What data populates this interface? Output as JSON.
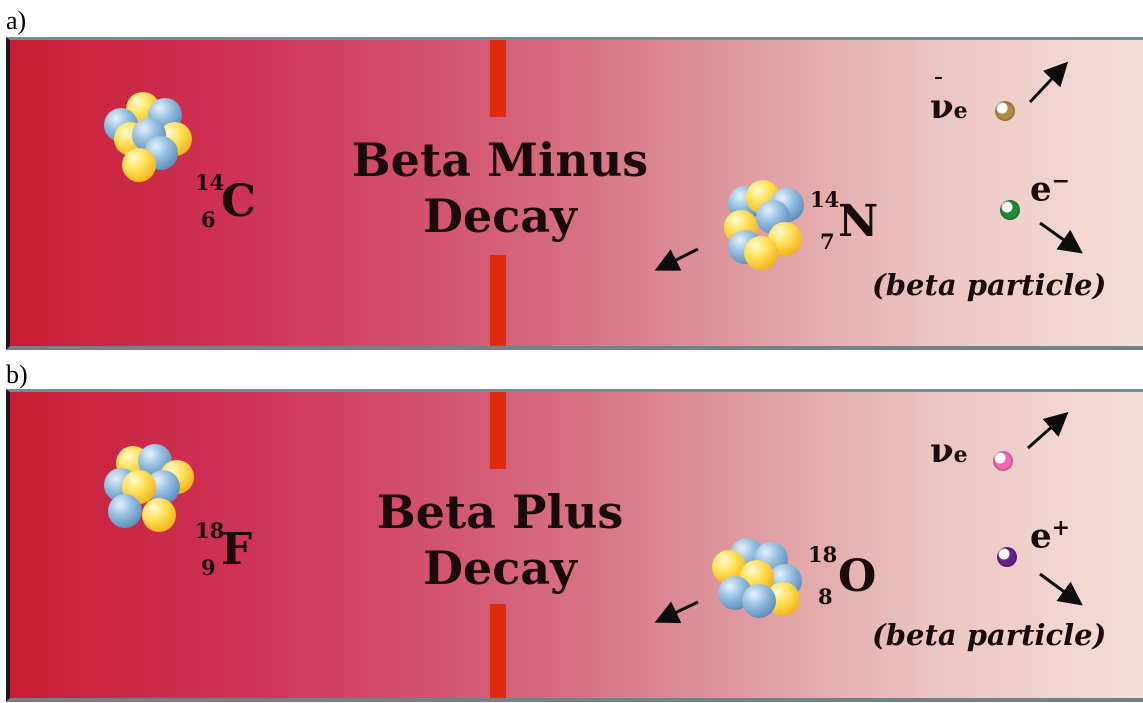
{
  "panels": [
    {
      "label": "a)",
      "title_line1": "Beta Minus",
      "title_line2": "Decay",
      "parent": {
        "mass": "14",
        "atomic": "6",
        "symbol": "C"
      },
      "daughter": {
        "mass": "14",
        "atomic": "7",
        "symbol": "N"
      },
      "neutrino": {
        "symbol": "ν",
        "subscript": "e",
        "antiparticle": true,
        "color": "#b58a49"
      },
      "beta": {
        "symbol": "e",
        "charge": "−",
        "color": "#1e8a3c"
      },
      "beta_caption": "(beta particle)"
    },
    {
      "label": "b)",
      "title_line1": "Beta Plus",
      "title_line2": "Decay",
      "parent": {
        "mass": "18",
        "atomic": "9",
        "symbol": "F"
      },
      "daughter": {
        "mass": "18",
        "atomic": "8",
        "symbol": "O"
      },
      "neutrino": {
        "symbol": "ν",
        "subscript": "e",
        "antiparticle": false,
        "color": "#f06ab4"
      },
      "beta": {
        "symbol": "e",
        "charge": "+",
        "color": "#6b1f8c"
      },
      "beta_caption": "(beta particle)"
    }
  ],
  "colors": {
    "divider": "#e02a10",
    "proton": "#ffe25a",
    "neutron": "#99c2e2",
    "text": "#1b0a0c"
  }
}
